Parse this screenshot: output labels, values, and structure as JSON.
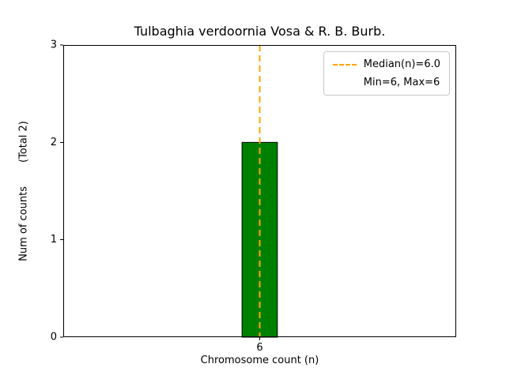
{
  "chart_data": {
    "type": "bar",
    "title": "Tulbaghia verdoornia Vosa & R. B. Burb.",
    "xlabel": "Chromosome count (n)",
    "ylabel": "Num of counts",
    "ylabel_note": "(Total 2)",
    "x": [
      6
    ],
    "values": [
      2
    ],
    "bar_width": 0.09,
    "xlim": [
      5.5,
      6.5
    ],
    "ylim": [
      0,
      3
    ],
    "xticks": [
      6
    ],
    "yticks": [
      0,
      1,
      2,
      3
    ],
    "median": 6.0,
    "min": 6,
    "max": 6,
    "grid": false,
    "colors": {
      "bar_fill": "#008000",
      "bar_edge": "#000000",
      "median_line": "#ffa500",
      "axes": "#000000"
    },
    "legend": {
      "position": "upper right",
      "entries": [
        {
          "label": "Median(n)=6.0",
          "handle": "dashed-line"
        },
        {
          "label": "Min=6, Max=6",
          "handle": "none"
        }
      ]
    }
  }
}
